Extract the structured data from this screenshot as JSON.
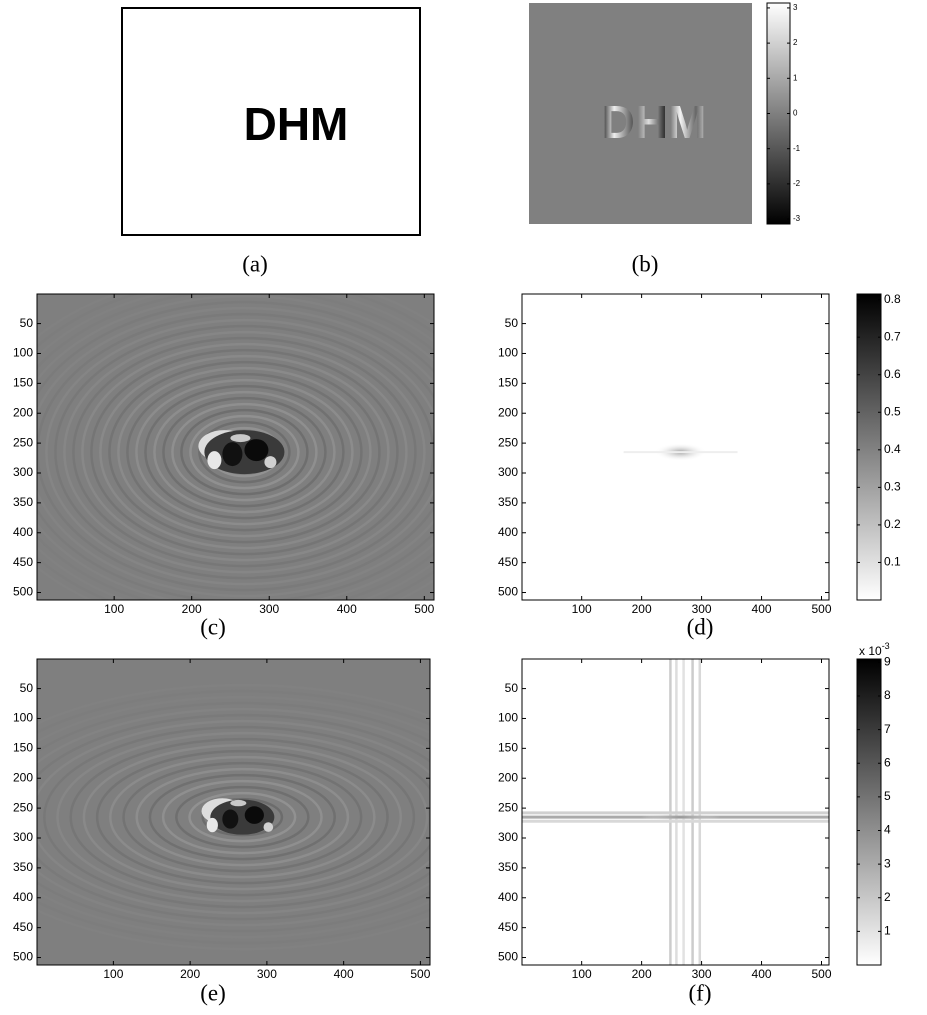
{
  "panels": {
    "a": {
      "label": "(a)",
      "text": "DHM"
    },
    "b": {
      "label": "(b)",
      "text": "DHM",
      "colorbar": {
        "lim": [
          -3.14,
          3.14
        ],
        "ticks": [
          3,
          2,
          1,
          0,
          -1,
          -2,
          -3
        ]
      }
    },
    "c": {
      "label": "(c)",
      "xlim": [
        0.5,
        512.5
      ],
      "ylim": [
        0.5,
        512.5
      ],
      "xticks": [
        100,
        200,
        300,
        400,
        500
      ],
      "yticks": [
        50,
        100,
        150,
        200,
        250,
        300,
        350,
        400,
        450,
        500
      ]
    },
    "d": {
      "label": "(d)",
      "xlim": [
        0.5,
        512.5
      ],
      "ylim": [
        0.5,
        512.5
      ],
      "xticks": [
        100,
        200,
        300,
        400,
        500
      ],
      "yticks": [
        50,
        100,
        150,
        200,
        250,
        300,
        350,
        400,
        450,
        500
      ],
      "colorbar": {
        "lim": [
          0,
          0.815
        ],
        "ticks": [
          0.8,
          0.7,
          0.6,
          0.5,
          0.4,
          0.3,
          0.2,
          0.1
        ]
      }
    },
    "e": {
      "label": "(e)",
      "xlim": [
        0.5,
        512.5
      ],
      "ylim": [
        0.5,
        512.5
      ],
      "xticks": [
        100,
        200,
        300,
        400,
        500
      ],
      "yticks": [
        50,
        100,
        150,
        200,
        250,
        300,
        350,
        400,
        450,
        500
      ]
    },
    "f": {
      "label": "(f)",
      "xlim": [
        0.5,
        512.5
      ],
      "ylim": [
        0.5,
        512.5
      ],
      "xticks": [
        100,
        200,
        300,
        400,
        500
      ],
      "yticks": [
        50,
        100,
        150,
        200,
        250,
        300,
        350,
        400,
        450,
        500
      ],
      "colorbar": {
        "lim": [
          0,
          9.1
        ],
        "ticks": [
          9,
          8,
          7,
          6,
          5,
          4,
          3,
          2,
          1
        ],
        "scale": {
          "base": "x 10",
          "exp": "-3"
        }
      }
    }
  }
}
